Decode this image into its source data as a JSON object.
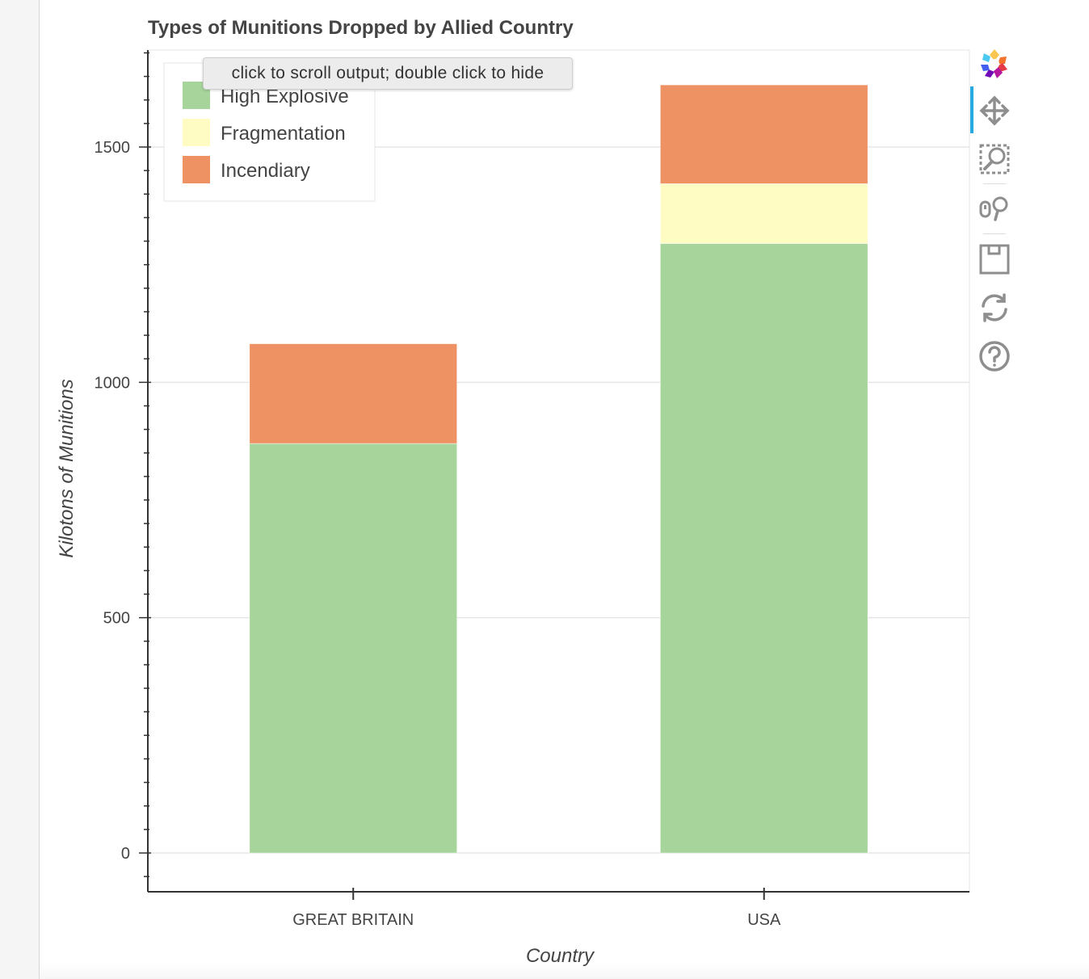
{
  "chart_data": {
    "type": "bar",
    "stacked": true,
    "title": "Types of Munitions Dropped by Allied Country",
    "xlabel": "Country",
    "ylabel": "Kilotons of Munitions",
    "categories": [
      "GREAT BRITAIN",
      "USA"
    ],
    "series": [
      {
        "name": "High Explosive",
        "color": "#a6d49a",
        "values": [
          870,
          1295
        ]
      },
      {
        "name": "Fragmentation",
        "color": "#fefcc3",
        "values": [
          0,
          127
        ]
      },
      {
        "name": "Incendiary",
        "color": "#ee9264",
        "values": [
          212,
          210
        ]
      }
    ],
    "yticks": [
      "0",
      "500",
      "1000",
      "1500"
    ],
    "ylim": [
      -85,
      1710
    ],
    "grid": true,
    "legend": "top-left"
  },
  "tooltip": {
    "text": "click to scroll output; double click to hide"
  },
  "toolbar": {
    "tools": [
      "bokeh-logo-icon",
      "pan-icon",
      "box-zoom-icon",
      "wheel-zoom-icon",
      "save-icon",
      "reset-icon",
      "help-icon"
    ]
  }
}
